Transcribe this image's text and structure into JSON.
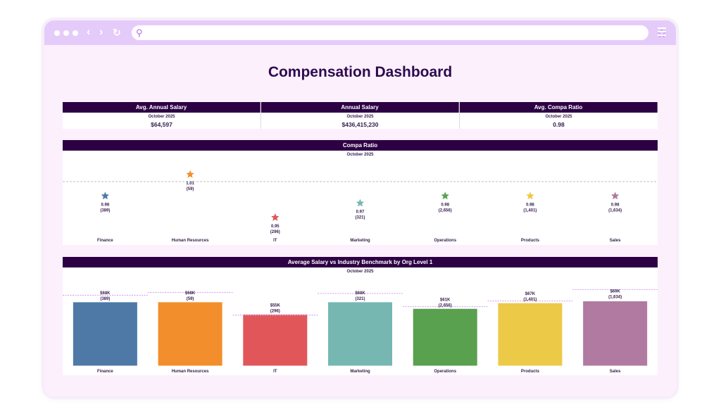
{
  "browser": {
    "icons": [
      "window-dot",
      "window-dot",
      "window-dot",
      "back-chevron",
      "forward-chevron",
      "refresh-icon",
      "search-icon",
      "star-icon",
      "menu-icon"
    ],
    "url_value": ""
  },
  "title": "Compensation Dashboard",
  "kpis": [
    {
      "label": "Avg. Annual Salary",
      "period": "October 2025",
      "value": "$64,597"
    },
    {
      "label": "Annual Salary",
      "period": "October 2025",
      "value": "$436,415,230"
    },
    {
      "label": "Avg. Compa Ratio",
      "period": "October 2025",
      "value": "0.98"
    }
  ],
  "compa_panel": {
    "title": "Compa Ratio",
    "period": "October 2025"
  },
  "salary_panel": {
    "title": "Average Salary vs Industry Benchmark by Org Level 1",
    "period": "October 2025"
  },
  "chart_data": [
    {
      "type": "scatter",
      "title": "Compa Ratio",
      "categories": [
        "Finance",
        "Human Resources",
        "IT",
        "Marketing",
        "Operations",
        "Products",
        "Sales"
      ],
      "values": [
        0.98,
        1.01,
        0.95,
        0.97,
        0.98,
        0.98,
        0.98
      ],
      "labels": [
        "0.98",
        "1.01",
        "0.95",
        "0.97",
        "0.98",
        "0.98",
        "0.98"
      ],
      "counts": [
        "(389)",
        "(59)",
        "(296)",
        "(321)",
        "(2,656)",
        "(1,401)",
        "(1,634)"
      ],
      "reference_line": 1.0,
      "marker": "star",
      "colors": [
        "#4e79a7",
        "#f28e2b",
        "#e15759",
        "#76b7b2",
        "#59a14f",
        "#edc948",
        "#b07aa1"
      ]
    },
    {
      "type": "bar",
      "title": "Average Salary vs Industry Benchmark by Org Level 1",
      "categories": [
        "Finance",
        "Human Resources",
        "IT",
        "Marketing",
        "Operations",
        "Products",
        "Sales"
      ],
      "values": [
        68,
        68,
        55,
        68,
        61,
        67,
        69
      ],
      "labels": [
        "$68K",
        "$68K",
        "$55K",
        "$68K",
        "$61K",
        "$67K",
        "$69K"
      ],
      "counts": [
        "(389)",
        "(59)",
        "(296)",
        "(321)",
        "(2,656)",
        "(1,401)",
        "(1,634)"
      ],
      "benchmark": [
        75,
        78,
        54,
        77,
        63,
        69,
        81
      ],
      "unit": "K USD",
      "colors": [
        "#4e79a7",
        "#f28e2b",
        "#e15759",
        "#76b7b2",
        "#59a14f",
        "#edc948",
        "#b07aa1"
      ],
      "benchmark_color": "#d9a6f0"
    }
  ]
}
